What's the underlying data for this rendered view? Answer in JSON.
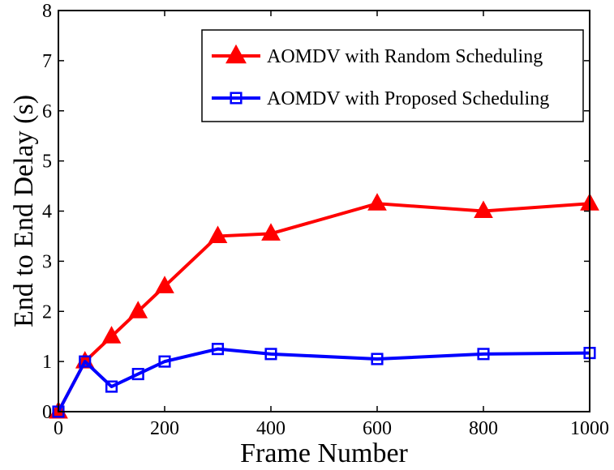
{
  "chart_data": {
    "type": "line",
    "xlabel": "Frame Number",
    "ylabel": "End to End Delay (s)",
    "xlim": [
      0,
      1000
    ],
    "ylim": [
      0,
      8
    ],
    "xticks": [
      0,
      200,
      400,
      600,
      800,
      1000
    ],
    "yticks": [
      0,
      1,
      2,
      3,
      4,
      5,
      6,
      7,
      8
    ],
    "grid": false,
    "legend_position": "top-right",
    "x": [
      0,
      50,
      100,
      150,
      200,
      300,
      400,
      600,
      800,
      1000
    ],
    "series": [
      {
        "name": "AOMDV with Random Scheduling",
        "color": "#ff0000",
        "marker": "triangle",
        "values": [
          0,
          1.0,
          1.5,
          2.0,
          2.5,
          3.5,
          3.55,
          4.15,
          4.0,
          4.15
        ]
      },
      {
        "name": "AOMDV with Proposed Scheduling",
        "color": "#0000ff",
        "marker": "square",
        "values": [
          0,
          1.0,
          0.5,
          0.75,
          1.0,
          1.25,
          1.15,
          1.05,
          1.15,
          1.17
        ]
      }
    ]
  }
}
